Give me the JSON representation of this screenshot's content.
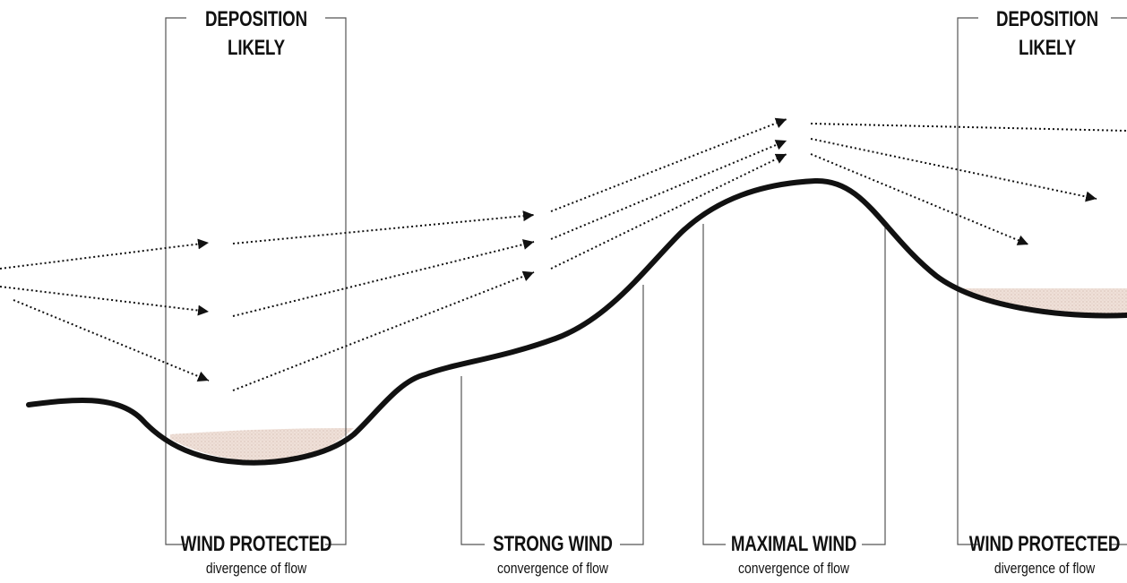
{
  "labels": {
    "deposition_left": [
      "DEPOSITION",
      "LIKELY"
    ],
    "deposition_right": [
      "DEPOSITION",
      "LIKELY"
    ],
    "zones": [
      {
        "title": "WIND PROTECTED",
        "sub": "divergence of flow"
      },
      {
        "title": "STRONG WIND",
        "sub": "convergence of flow"
      },
      {
        "title": "MAXIMAL WIND",
        "sub": "convergence of flow"
      },
      {
        "title": "WIND PROTECTED",
        "sub": "divergence of flow"
      }
    ]
  },
  "colors": {
    "terrain": "#111111",
    "bracket": "#555555",
    "arrow": "#111111",
    "deposit": "#e6cfc3"
  }
}
